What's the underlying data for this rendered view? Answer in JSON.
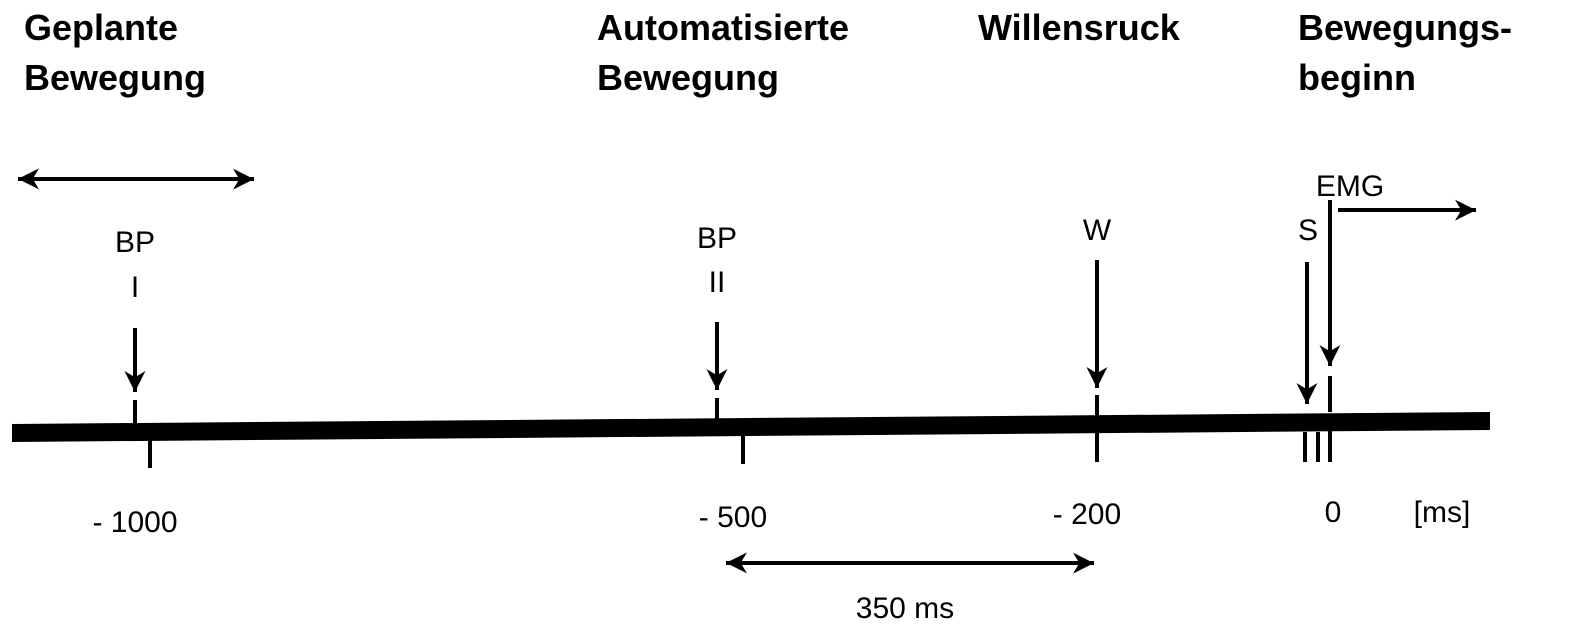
{
  "headings": [
    {
      "lines": [
        "Geplante",
        "Bewegung"
      ]
    },
    {
      "lines": [
        "Automatisierte",
        "Bewegung"
      ]
    },
    {
      "lines": [
        "Willensruck"
      ]
    },
    {
      "lines": [
        "Bewegungs-",
        "beginn"
      ]
    }
  ],
  "markers": [
    {
      "label": "BP",
      "sublabel": "I"
    },
    {
      "label": "BP",
      "sublabel": "II"
    },
    {
      "label": "W"
    },
    {
      "label": "S"
    },
    {
      "label": "EMG"
    }
  ],
  "axis": {
    "ticks": [
      "- 1000",
      "- 500",
      "- 200",
      "0"
    ],
    "unit": "[ms]"
  },
  "interval": "350 ms"
}
